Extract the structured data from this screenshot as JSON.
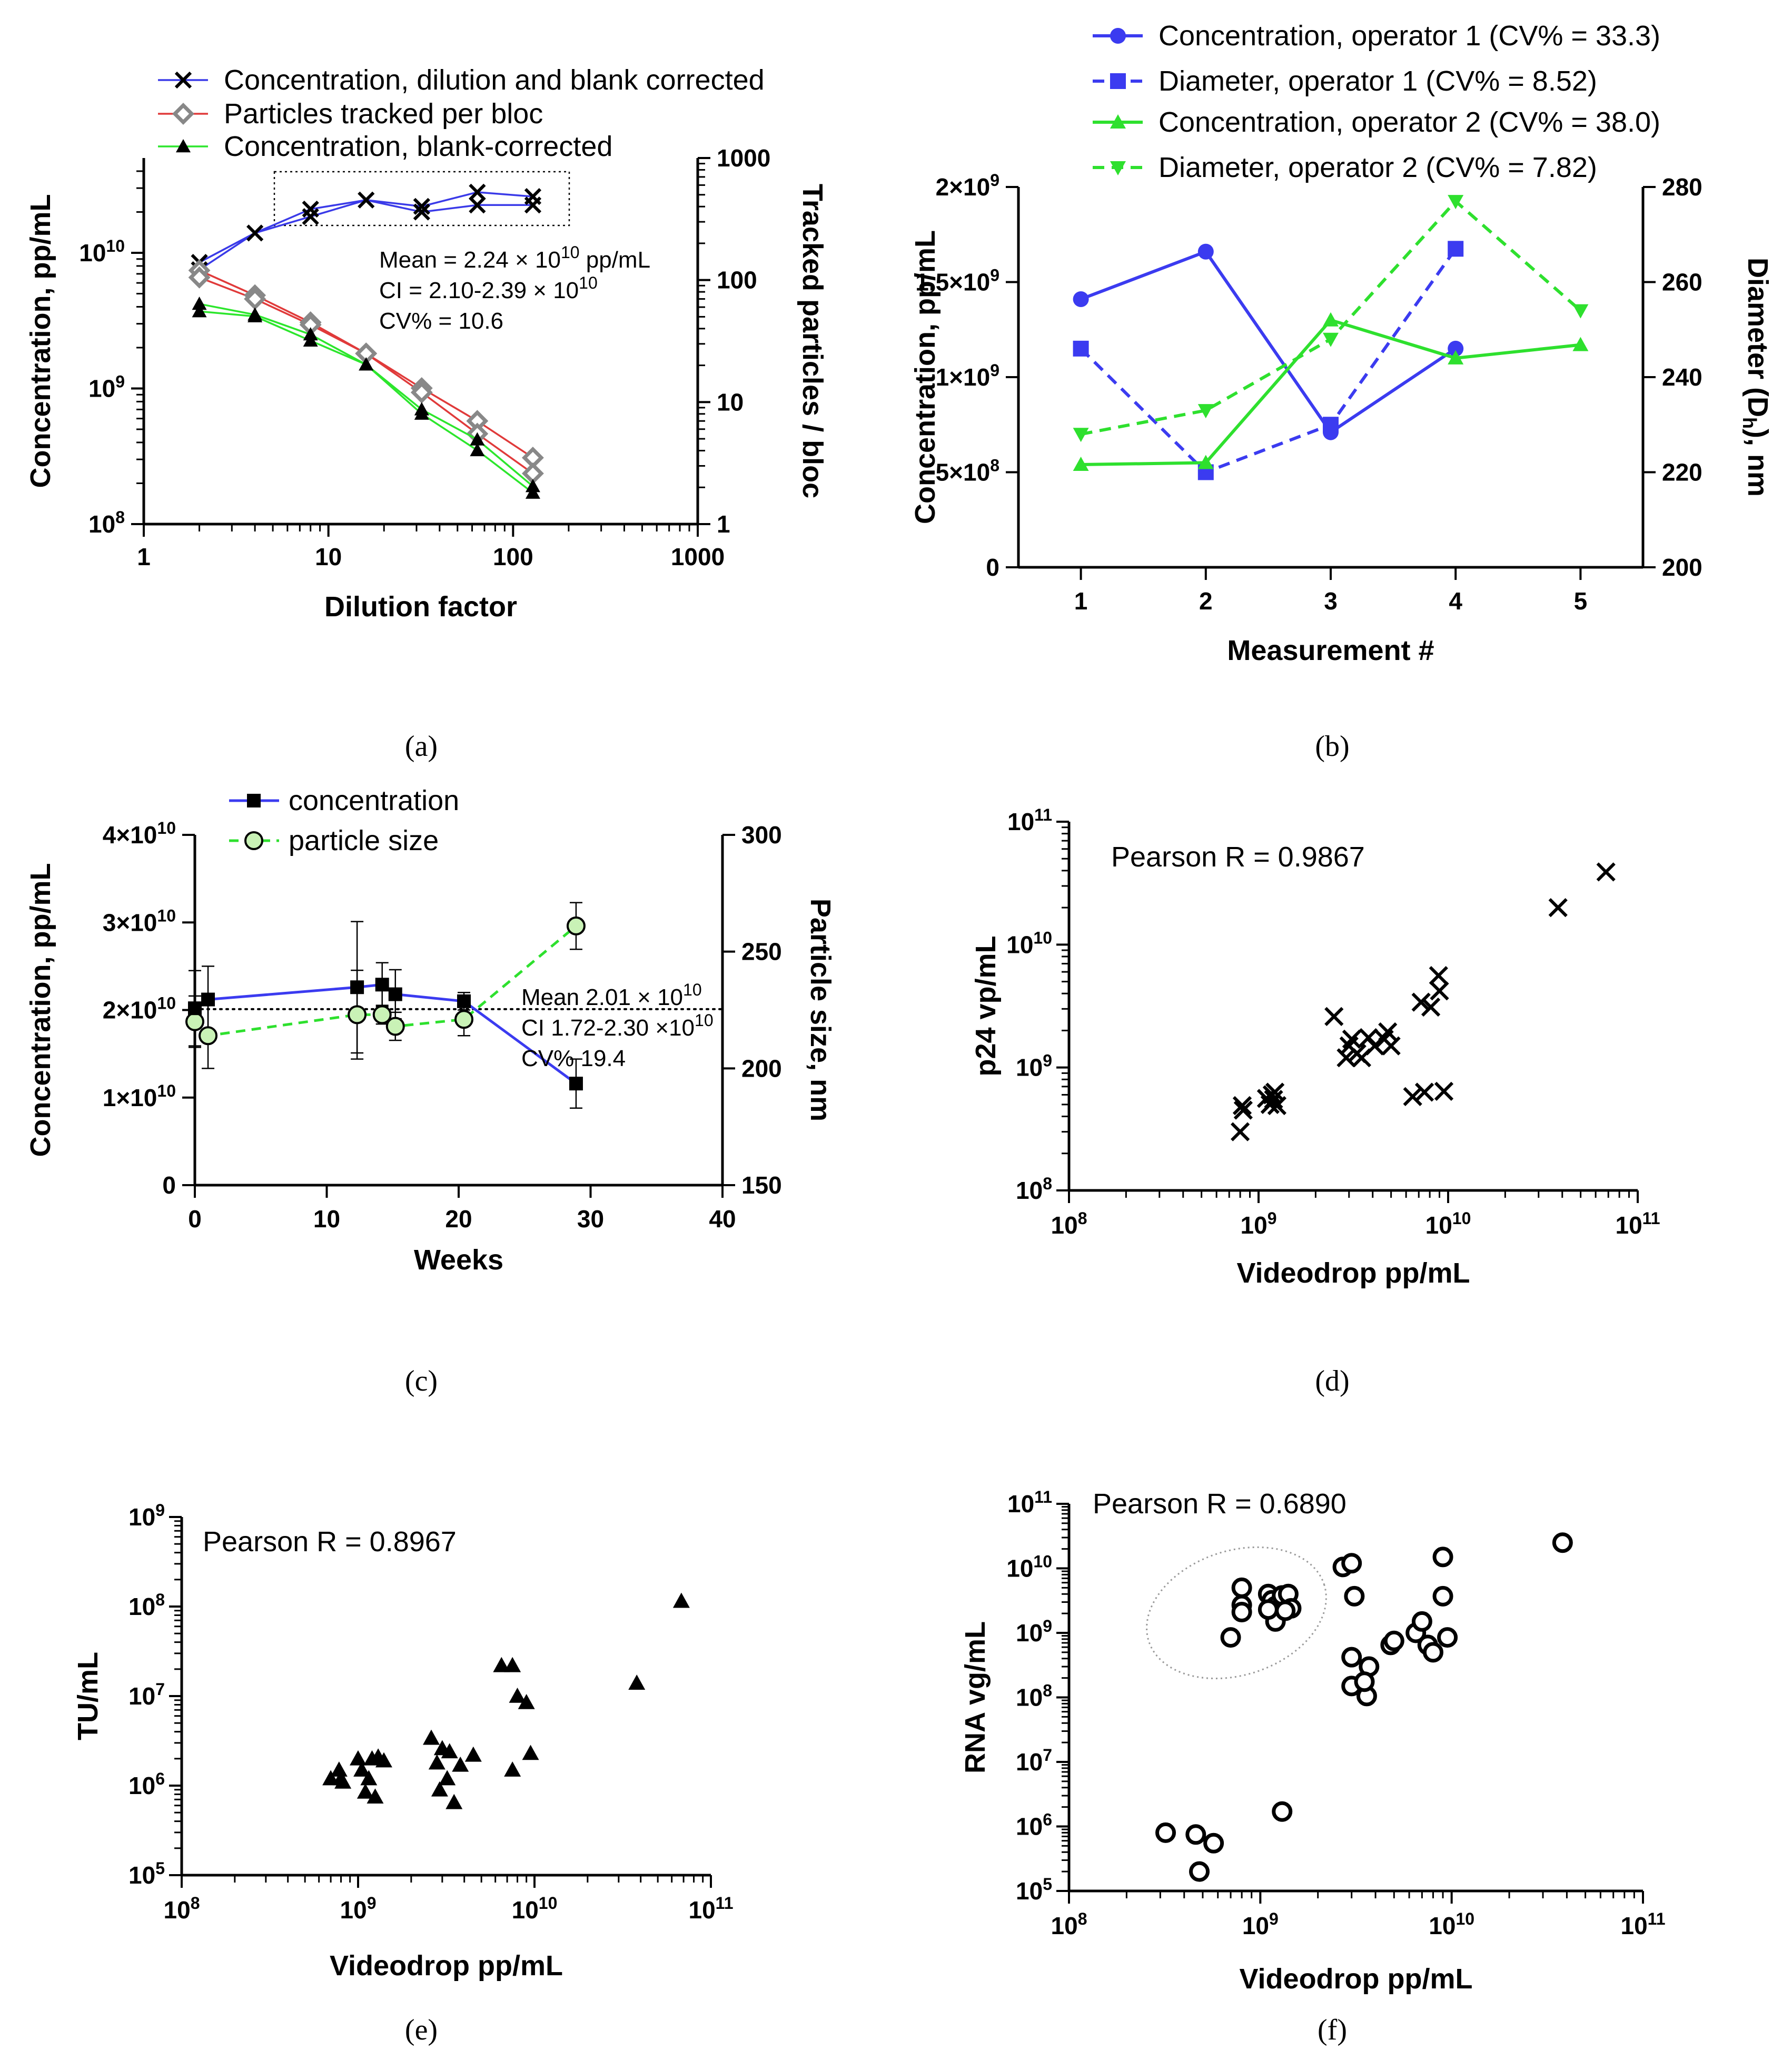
{
  "chart_data": [
    {
      "panel": "(a)",
      "type": "line",
      "xscale": "log",
      "xlim": [
        1,
        1000
      ],
      "xticks": [
        "1",
        "10",
        "100",
        "1000"
      ],
      "xlabel": "Dilution factor",
      "ylabel": "Concentration, pp/mL",
      "yscale": "log",
      "ylim": [
        100000000.0,
        50000000000.0
      ],
      "yticks": [
        {
          "b": "10",
          "e": "8"
        },
        {
          "b": "10",
          "e": "9"
        },
        {
          "b": "10",
          "e": "10"
        }
      ],
      "y2label": "Tracked particles / bloc",
      "y2scale": "log",
      "y2lim": [
        1,
        1000
      ],
      "y2ticks": [
        "1",
        "10",
        "100",
        "1000"
      ],
      "legend": [
        "Concentration, dilution and blank corrected",
        "Particles tracked per bloc",
        "Concentration, blank-corrected"
      ],
      "series": [
        {
          "name": "Concentration, dilution and blank corrected",
          "axis": "y",
          "color": "#3a3ae8",
          "marker": "x",
          "x": [
            2,
            4,
            8,
            16,
            32,
            64,
            128,
            2,
            8,
            32,
            64,
            128
          ],
          "y": [
            8500000000.0,
            14000000000.0,
            21000000000.0,
            24500000000.0,
            22000000000.0,
            28000000000.0,
            26000000000.0,
            7500000000.0,
            18500000000.0,
            20000000000.0,
            22500000000.0,
            22500000000.0
          ],
          "runs": [
            [
              0,
              1,
              2,
              3,
              4,
              5,
              6
            ],
            [
              7,
              1,
              8,
              3,
              9,
              10,
              11
            ]
          ]
        },
        {
          "name": "Particles tracked per bloc",
          "axis": "y2",
          "color": "#e03a3a",
          "marker": "diamond",
          "x": [
            2,
            4,
            8,
            16,
            32,
            64,
            128,
            2,
            4,
            8,
            16,
            32,
            64,
            128
          ],
          "y": [
            120,
            75,
            45,
            25,
            13,
            7,
            3.5,
            105,
            70,
            43,
            25,
            12,
            5.5,
            2.6
          ],
          "runs": [
            [
              0,
              1,
              2,
              3,
              4,
              5,
              6
            ],
            [
              7,
              8,
              9,
              10,
              11,
              12,
              13
            ]
          ]
        },
        {
          "name": "Concentration, blank-corrected",
          "axis": "y",
          "color": "#2ce62c",
          "marker": "triangle",
          "x": [
            2,
            4,
            8,
            16,
            32,
            64,
            128,
            2,
            4,
            8,
            16,
            32,
            64,
            128
          ],
          "y": [
            4200000000.0,
            3500000000.0,
            2500000000.0,
            1500000000.0,
            700000000.0,
            420000000.0,
            190000000.0,
            3700000000.0,
            3400000000.0,
            2250000000.0,
            1500000000.0,
            650000000.0,
            350000000.0,
            170000000.0
          ],
          "runs": [
            [
              0,
              1,
              2,
              3,
              4,
              5,
              6
            ],
            [
              7,
              8,
              9,
              10,
              11,
              12,
              13
            ]
          ]
        }
      ],
      "annotations": {
        "mean": {
          "pre": "Mean = 2.24 × 10",
          "sup": "10",
          "post": " pp/mL"
        },
        "ci": {
          "pre": "CI = 2.10-2.39 × 10",
          "sup": "10",
          "post": ""
        },
        "cv": "CV% = 10.6"
      }
    },
    {
      "panel": "(b)",
      "type": "line",
      "xlabel": "Measurement #",
      "xticks": [
        "1",
        "2",
        "3",
        "4",
        "5"
      ],
      "xlim": [
        0.5,
        5.5
      ],
      "ylabel": "Concentration, pp/mL",
      "ylim": [
        0,
        2000000000
      ],
      "yticks": [
        {
          "v": 0,
          "t": "0"
        },
        {
          "v": 500000000,
          "t": "5×10",
          "e": "8"
        },
        {
          "v": 1000000000,
          "t": "1×10",
          "e": "9"
        },
        {
          "v": 1500000000,
          "t": "1.5×10",
          "e": "9"
        },
        {
          "v": 2000000000,
          "t": "2×10",
          "e": "9"
        }
      ],
      "y2label": "Diameter (D",
      "y2label_sub": "h",
      "y2label_post": "), nm",
      "y2lim": [
        200,
        280
      ],
      "y2ticks": [
        "200",
        "220",
        "240",
        "260",
        "280"
      ],
      "series": [
        {
          "name": "Concentration, operator 1 (CV% = 33.3)",
          "axis": "y",
          "color": "#3b3bf0",
          "dash": false,
          "marker": "circle",
          "x": [
            1,
            2,
            3,
            4
          ],
          "y": [
            1410000000,
            1660000000,
            710000000,
            1150000000
          ]
        },
        {
          "name": "Diameter, operator 1 (CV% = 8.52)",
          "axis": "y2",
          "color": "#3b3bf0",
          "dash": true,
          "marker": "square",
          "x": [
            1,
            2,
            3,
            4
          ],
          "y": [
            246,
            220,
            230,
            267
          ]
        },
        {
          "name": "Concentration, operator 2 (CV% = 38.0)",
          "axis": "y",
          "color": "#2ee02e",
          "dash": false,
          "marker": "triangle",
          "x": [
            1,
            2,
            3,
            4,
            5
          ],
          "y": [
            540000000,
            550000000,
            1300000000,
            1100000000,
            1170000000
          ]
        },
        {
          "name": "Diameter, operator 2 (CV% = 7.82)",
          "axis": "y2",
          "color": "#2ee02e",
          "dash": true,
          "marker": "triangle-down",
          "x": [
            1,
            2,
            3,
            4,
            5
          ],
          "y": [
            228,
            233,
            248,
            277,
            254
          ]
        }
      ]
    },
    {
      "panel": "(c)",
      "type": "line",
      "xlabel": "Weeks",
      "xlim": [
        0,
        40
      ],
      "xticks": [
        "0",
        "10",
        "20",
        "30",
        "40"
      ],
      "ylabel": "Concentration, pp/mL",
      "ylim": [
        0,
        40000000000
      ],
      "yticks": [
        {
          "v": 0,
          "t": "0"
        },
        {
          "v": 10000000000,
          "t": "1×10",
          "e": "10"
        },
        {
          "v": 20000000000,
          "t": "2×10",
          "e": "10"
        },
        {
          "v": 30000000000,
          "t": "3×10",
          "e": "10"
        },
        {
          "v": 40000000000,
          "t": "4×10",
          "e": "10"
        }
      ],
      "y2label": "Particle size, nm",
      "y2lim": [
        150,
        300
      ],
      "y2ticks": [
        "150",
        "200",
        "250",
        "300"
      ],
      "legend": [
        "concentration",
        "particle size"
      ],
      "series": [
        {
          "name": "concentration",
          "axis": "y",
          "color": "#3b3bf0",
          "marker": "square",
          "x": [
            0,
            1,
            12.3,
            14.2,
            15.2,
            20.4,
            28.9
          ],
          "y": [
            20200000000,
            21200000000,
            22600000000,
            22900000000,
            21800000000,
            21000000000,
            11600000000
          ],
          "err": [
            4300000000,
            3800000000,
            7500000000,
            2500000000,
            2800000000,
            1000000000,
            2800000000
          ]
        },
        {
          "name": "particle size",
          "axis": "y2",
          "color": "#2ee02e",
          "marker": "circle-open",
          "x": [
            0,
            1,
            12.3,
            14.2,
            15.2,
            20.4,
            28.9
          ],
          "y": [
            220,
            214,
            223,
            223,
            218,
            221,
            261
          ],
          "err": [
            11,
            14,
            19,
            4,
            6,
            7,
            10
          ]
        }
      ],
      "mean_line": 20100000000,
      "annotations": {
        "mean": {
          "pre": "Mean 2.01 × 10",
          "sup": "10"
        },
        "ci": {
          "pre": "CI 1.72-2.30 ×10",
          "sup": "10"
        },
        "cv": "CV% 19.4"
      }
    },
    {
      "panel": "(d)",
      "type": "scatter",
      "xlabel": "Videodrop pp/mL",
      "ylabel": "p24 vp/mL",
      "xscale": "log",
      "xlim": [
        100000000.0,
        100000000000.0
      ],
      "yscale": "log",
      "ylim": [
        100000000.0,
        100000000000.0
      ],
      "xticks": [
        {
          "b": "10",
          "e": "8"
        },
        {
          "b": "10",
          "e": "9"
        },
        {
          "b": "10",
          "e": "10"
        },
        {
          "b": "10",
          "e": "11"
        }
      ],
      "yticks": [
        {
          "b": "10",
          "e": "8"
        },
        {
          "b": "10",
          "e": "9"
        },
        {
          "b": "10",
          "e": "10"
        },
        {
          "b": "10",
          "e": "11"
        }
      ],
      "annotation": "Pearson R = 0.9867",
      "marker": "x",
      "x": [
        820000000.0,
        830000000.0,
        800000000.0,
        1100000000.0,
        1150000000.0,
        1200000000.0,
        1250000000.0,
        1180000000.0,
        1220000000.0,
        2500000000.0,
        2900000000.0,
        3100000000.0,
        3300000000.0,
        3500000000.0,
        3000000000.0,
        3800000000.0,
        4100000000.0,
        4800000000.0,
        5000000000.0,
        4600000000.0,
        7200000000.0,
        8100000000.0,
        8900000000.0,
        9000000000.0,
        6500000000.0,
        7500000000.0,
        9500000000.0,
        38000000000.0,
        68000000000.0
      ],
      "y": [
        490000000.0,
        450000000.0,
        300000000.0,
        560000000.0,
        500000000.0,
        550000000.0,
        490000000.0,
        600000000.0,
        630000000.0,
        2600000000.0,
        1200000000.0,
        1700000000.0,
        1300000000.0,
        1200000000.0,
        1500000000.0,
        1750000000.0,
        1500000000.0,
        1950000000.0,
        1500000000.0,
        1700000000.0,
        3400000000.0,
        3100000000.0,
        5600000000.0,
        4200000000.0,
        580000000.0,
        630000000.0,
        640000000.0,
        20000000000.0,
        39000000000.0
      ]
    },
    {
      "panel": "(e)",
      "type": "scatter",
      "xlabel": "Videodrop pp/mL",
      "ylabel": "TU/mL",
      "xscale": "log",
      "xlim": [
        100000000.0,
        100000000000.0
      ],
      "yscale": "log",
      "ylim": [
        100000.0,
        1000000000.0
      ],
      "xticks": [
        {
          "b": "10",
          "e": "8"
        },
        {
          "b": "10",
          "e": "9"
        },
        {
          "b": "10",
          "e": "10"
        },
        {
          "b": "10",
          "e": "11"
        }
      ],
      "yticks": [
        {
          "b": "10",
          "e": "5"
        },
        {
          "b": "10",
          "e": "6"
        },
        {
          "b": "10",
          "e": "7"
        },
        {
          "b": "10",
          "e": "8"
        },
        {
          "b": "10",
          "e": "9"
        }
      ],
      "annotation": "Pearson R = 0.8967",
      "marker": "triangle",
      "x": [
        700000000.0,
        780000000.0,
        820000000.0,
        800000000.0,
        1000000000.0,
        1050000000.0,
        1150000000.0,
        1200000000.0,
        1300000000.0,
        1400000000.0,
        1100000000.0,
        1250000000.0,
        2600000000.0,
        2800000000.0,
        3000000000.0,
        3200000000.0,
        3500000000.0,
        3800000000.0,
        4500000000.0,
        3300000000.0,
        2900000000.0,
        6500000000.0,
        7500000000.0,
        8000000000.0,
        9000000000.0,
        9500000000.0,
        7500000000.0,
        38000000000.0,
        68000000000.0
      ],
      "y": [
        1200000.0,
        1500000.0,
        1100000.0,
        1200000.0,
        2000000.0,
        1500000.0,
        1200000.0,
        2000000.0,
        2100000.0,
        1900000.0,
        850000.0,
        750000.0,
        3400000.0,
        1800000.0,
        2600000.0,
        1200000.0,
        650000.0,
        1700000.0,
        2200000.0,
        2400000.0,
        900000.0,
        22000000.0,
        22000000.0,
        10000000.0,
        8500000.0,
        2300000.0,
        1500000.0,
        14000000.0,
        115000000.0
      ]
    },
    {
      "panel": "(f)",
      "type": "scatter",
      "xlabel": "Videodrop pp/mL",
      "ylabel": "RNA vg/mL",
      "xscale": "log",
      "xlim": [
        100000000.0,
        100000000000.0
      ],
      "yscale": "log",
      "ylim": [
        100000.0,
        100000000000.0
      ],
      "xticks": [
        {
          "b": "10",
          "e": "8"
        },
        {
          "b": "10",
          "e": "9"
        },
        {
          "b": "10",
          "e": "10"
        },
        {
          "b": "10",
          "e": "11"
        }
      ],
      "yticks": [
        {
          "b": "10",
          "e": "5"
        },
        {
          "b": "10",
          "e": "6"
        },
        {
          "b": "10",
          "e": "7"
        },
        {
          "b": "10",
          "e": "8"
        },
        {
          "b": "10",
          "e": "9"
        },
        {
          "b": "10",
          "e": "10"
        },
        {
          "b": "10",
          "e": "11"
        }
      ],
      "annotation": "Pearson R  = 0.6890",
      "marker": "circle-open",
      "x": [
        700000000.0,
        800000000.0,
        800000000.0,
        800000000.0,
        1100000000.0,
        1150000000.0,
        1200000000.0,
        1250000000.0,
        1300000000.0,
        1200000000.0,
        1400000000.0,
        1450000000.0,
        1100000000.0,
        1350000000.0,
        2700000000.0,
        3000000000.0,
        3100000000.0,
        3000000000.0,
        3000000000.0,
        3600000000.0,
        3700000000.0,
        3500000000.0,
        4800000000.0,
        5000000000.0,
        6500000000.0,
        7000000000.0,
        7500000000.0,
        8000000000.0,
        9000000000.0,
        9000000000.0,
        9500000000.0,
        38000000000.0,
        1300000000.0,
        320000000.0,
        460000000.0,
        570000000.0,
        480000000.0
      ],
      "y": [
        850000000.0,
        5000000000.0,
        2700000000.0,
        2100000000.0,
        4000000000.0,
        3200000000.0,
        2600000000.0,
        2300000000.0,
        3800000000.0,
        1500000000.0,
        4000000000.0,
        2400000000.0,
        2300000000.0,
        2200000000.0,
        10500000000.0,
        12000000000.0,
        3700000000.0,
        420000000.0,
        150000000.0,
        105000000.0,
        300000000.0,
        175000000.0,
        650000000.0,
        750000000.0,
        1000000000.0,
        1500000000.0,
        650000000.0,
        500000000.0,
        15000000000.0,
        3700000000.0,
        850000000.0,
        25000000000.0,
        1700000.0,
        800000.0,
        750000.0,
        550000.0,
        200000.0
      ],
      "ellipse_note": "dotted ellipse around upper-left cluster"
    }
  ]
}
